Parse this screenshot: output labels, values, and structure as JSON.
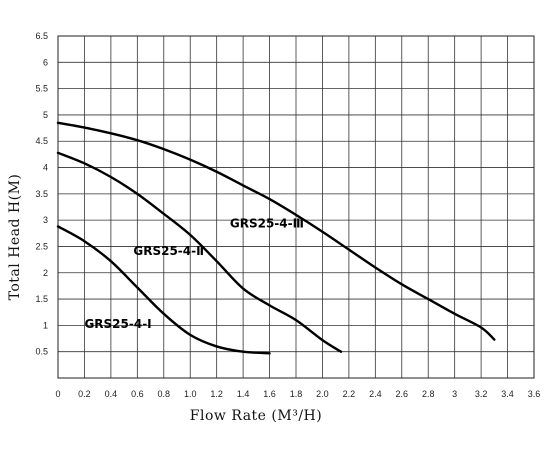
{
  "chart_data": {
    "type": "line",
    "xlabel": "Flow Rate (M³/H)",
    "ylabel": "Total Head H(M)",
    "xlim": [
      0,
      3.6
    ],
    "ylim": [
      0,
      6.5
    ],
    "x_ticks": [
      "0",
      "0.2",
      "0.4",
      "0.6",
      "0.8",
      "1.0",
      "1.2",
      "1.4",
      "1.6",
      "1.8",
      "2.0",
      "2.2",
      "2.4",
      "2.6",
      "2.8",
      "3",
      "3.2",
      "3.4",
      "3.6"
    ],
    "y_ticks": [
      "0.5",
      "1",
      "1.5",
      "2",
      "2.5",
      "3",
      "3.5",
      "4",
      "4.5",
      "5",
      "5.5",
      "6",
      "6.5"
    ],
    "grid": true,
    "series": [
      {
        "name": "GRS25-4-Ⅰ",
        "points": [
          [
            0,
            2.88
          ],
          [
            0.2,
            2.6
          ],
          [
            0.4,
            2.22
          ],
          [
            0.6,
            1.72
          ],
          [
            0.8,
            1.22
          ],
          [
            1.0,
            0.82
          ],
          [
            1.2,
            0.6
          ],
          [
            1.4,
            0.5
          ],
          [
            1.6,
            0.47
          ]
        ]
      },
      {
        "name": "GRS25-4-Ⅱ",
        "points": [
          [
            0,
            4.28
          ],
          [
            0.2,
            4.08
          ],
          [
            0.4,
            3.82
          ],
          [
            0.6,
            3.5
          ],
          [
            0.8,
            3.12
          ],
          [
            1.0,
            2.72
          ],
          [
            1.2,
            2.22
          ],
          [
            1.4,
            1.7
          ],
          [
            1.6,
            1.38
          ],
          [
            1.8,
            1.1
          ],
          [
            2.0,
            0.72
          ],
          [
            2.14,
            0.5
          ]
        ]
      },
      {
        "name": "GRS25-4-Ⅲ",
        "points": [
          [
            0,
            4.85
          ],
          [
            0.2,
            4.76
          ],
          [
            0.4,
            4.65
          ],
          [
            0.6,
            4.52
          ],
          [
            0.8,
            4.35
          ],
          [
            1.0,
            4.15
          ],
          [
            1.2,
            3.92
          ],
          [
            1.4,
            3.66
          ],
          [
            1.6,
            3.4
          ],
          [
            1.8,
            3.1
          ],
          [
            2.0,
            2.78
          ],
          [
            2.2,
            2.44
          ],
          [
            2.4,
            2.1
          ],
          [
            2.6,
            1.78
          ],
          [
            2.8,
            1.5
          ],
          [
            3.0,
            1.22
          ],
          [
            3.2,
            0.96
          ],
          [
            3.3,
            0.73
          ]
        ]
      }
    ]
  }
}
